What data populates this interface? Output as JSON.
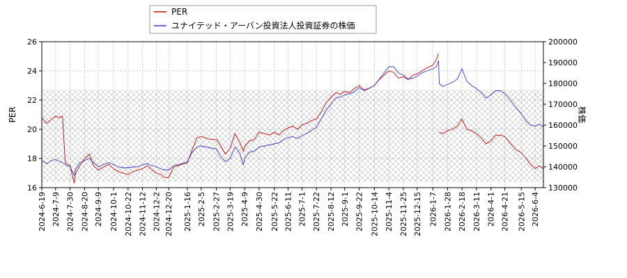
{
  "chart_data": {
    "type": "line",
    "legend": {
      "placement": "top-center",
      "entries": [
        {
          "label": "PER",
          "color": "#cc0000"
        },
        {
          "label": "ユナイテッド・アーバン投資法人投資証券の株価",
          "color": "#3333cc"
        }
      ]
    },
    "ylabel_left": "PER",
    "ylabel_right": "株価",
    "ylim_left": [
      16,
      26
    ],
    "ylim_right": [
      130000,
      200000
    ],
    "yticks_left": [
      "16",
      "18",
      "20",
      "22",
      "24",
      "26"
    ],
    "yticks_right": [
      "130000",
      "140000",
      "150000",
      "160000",
      "170000",
      "180000",
      "190000",
      "200000"
    ],
    "shaded_band_left": [
      16.4,
      22.7
    ],
    "grid": true,
    "x_ticks": [
      "2024-6-19",
      "2024-7-9",
      "2024-7-30",
      "2024-8-20",
      "2024-9-9",
      "2024-10-1",
      "2024-10-22",
      "2024-11-12",
      "2024-12-2",
      "2024-12-20",
      "2025-1-16",
      "2025-2-5",
      "2025-2-27",
      "2025-3-19",
      "2025-4-9",
      "2025-4-30",
      "2025-5-22",
      "2025-6-11",
      "2025-7-1",
      "2025-7-22",
      "2025-8-12",
      "2025-9-1",
      "2025-9-22",
      "2025-10-14",
      "2025-11-4",
      "2025-11-25",
      "2025-12-15",
      "2026-1-7",
      "2026-1-28",
      "2026-2-18",
      "2026-3-11",
      "2026-4-1",
      "2026-4-21",
      "2026-5-15",
      "2026-6-4"
    ],
    "series": [
      {
        "name": "PER",
        "axis": "left",
        "color": "#cc0000",
        "x": [
          "2024-6-19",
          "2024-6-26",
          "2024-7-3",
          "2024-7-9",
          "2024-7-15",
          "2024-7-19",
          "2024-7-23",
          "2024-7-30",
          "2024-8-5",
          "2024-8-7",
          "2024-8-13",
          "2024-8-20",
          "2024-8-27",
          "2024-9-2",
          "2024-9-9",
          "2024-9-16",
          "2024-9-24",
          "2024-10-1",
          "2024-10-8",
          "2024-10-15",
          "2024-10-22",
          "2024-10-29",
          "2024-11-5",
          "2024-11-12",
          "2024-11-19",
          "2024-11-26",
          "2024-12-2",
          "2024-12-9",
          "2024-12-13",
          "2024-12-20",
          "2024-12-27",
          "2025-1-8",
          "2025-1-16",
          "2025-1-23",
          "2025-1-30",
          "2025-2-5",
          "2025-2-12",
          "2025-2-19",
          "2025-2-27",
          "2025-3-5",
          "2025-3-12",
          "2025-3-19",
          "2025-3-26",
          "2025-4-2",
          "2025-4-7",
          "2025-4-9",
          "2025-4-16",
          "2025-4-23",
          "2025-4-30",
          "2025-5-8",
          "2025-5-15",
          "2025-5-22",
          "2025-5-29",
          "2025-6-4",
          "2025-6-11",
          "2025-6-18",
          "2025-6-25",
          "2025-7-1",
          "2025-7-8",
          "2025-7-15",
          "2025-7-22",
          "2025-7-29",
          "2025-8-5",
          "2025-8-12",
          "2025-8-19",
          "2025-8-26",
          "2025-9-1",
          "2025-9-8",
          "2025-9-15",
          "2025-9-22",
          "2025-9-29",
          "2025-10-6",
          "2025-10-14",
          "2025-10-21",
          "2025-10-28",
          "2025-11-4",
          "2025-11-11",
          "2025-11-18",
          "2025-11-25",
          "2025-12-2",
          "2025-12-9",
          "2025-12-15",
          "2025-12-22",
          "2025-12-29",
          "2026-1-7",
          "2026-1-12",
          "2026-1-15",
          "2026-1-16",
          "2026-1-21",
          "2026-1-28",
          "2026-2-4",
          "2026-2-11",
          "2026-2-18",
          "2026-2-25",
          "2026-3-4",
          "2026-3-11",
          "2026-3-18",
          "2026-3-25",
          "2026-4-1",
          "2026-4-8",
          "2026-4-15",
          "2026-4-21",
          "2026-4-28",
          "2026-5-7",
          "2026-5-15",
          "2026-5-22",
          "2026-5-28",
          "2026-6-4",
          "2026-6-10",
          "2026-6-16"
        ],
        "values": [
          20.8,
          20.4,
          20.7,
          20.9,
          20.8,
          20.9,
          17.7,
          17.5,
          16.3,
          17.0,
          17.5,
          18.0,
          18.3,
          17.5,
          17.2,
          17.4,
          17.6,
          17.3,
          17.1,
          17.0,
          16.9,
          17.1,
          17.2,
          17.3,
          17.5,
          17.2,
          17.0,
          16.9,
          16.7,
          16.7,
          17.4,
          17.6,
          17.7,
          18.6,
          19.4,
          19.5,
          19.4,
          19.3,
          19.3,
          18.9,
          18.3,
          18.7,
          19.7,
          19.1,
          18.5,
          18.8,
          19.2,
          19.3,
          19.8,
          19.7,
          19.6,
          19.8,
          19.6,
          19.9,
          20.1,
          20.2,
          20.0,
          20.3,
          20.4,
          20.6,
          20.7,
          21.2,
          21.8,
          22.2,
          22.5,
          22.4,
          22.6,
          22.5,
          22.8,
          23.0,
          22.7,
          22.8,
          23.0,
          23.4,
          23.7,
          24.0,
          23.9,
          23.5,
          23.6,
          23.4,
          23.7,
          23.8,
          24.0,
          24.2,
          24.4,
          24.8,
          25.2,
          19.8,
          19.7,
          19.9,
          20.0,
          20.2,
          20.7,
          20.0,
          19.9,
          19.7,
          19.4,
          19.0,
          19.2,
          19.6,
          19.6,
          19.5,
          19.1,
          18.6,
          18.4,
          18.0,
          17.6,
          17.3,
          17.5,
          17.3
        ]
      },
      {
        "name": "ユナイテッド・アーバン投資法人投資証券の株価",
        "axis": "right",
        "color": "#3333cc",
        "x": [
          "2024-6-19",
          "2024-6-26",
          "2024-7-3",
          "2024-7-9",
          "2024-7-15",
          "2024-7-19",
          "2024-7-23",
          "2024-7-30",
          "2024-8-5",
          "2024-8-7",
          "2024-8-13",
          "2024-8-20",
          "2024-8-27",
          "2024-9-2",
          "2024-9-9",
          "2024-9-16",
          "2024-9-24",
          "2024-10-1",
          "2024-10-8",
          "2024-10-15",
          "2024-10-22",
          "2024-10-29",
          "2024-11-5",
          "2024-11-12",
          "2024-11-19",
          "2024-11-26",
          "2024-12-2",
          "2024-12-9",
          "2024-12-13",
          "2024-12-20",
          "2024-12-27",
          "2025-1-8",
          "2025-1-16",
          "2025-1-23",
          "2025-1-30",
          "2025-2-5",
          "2025-2-12",
          "2025-2-19",
          "2025-2-27",
          "2025-3-5",
          "2025-3-12",
          "2025-3-19",
          "2025-3-26",
          "2025-4-2",
          "2025-4-7",
          "2025-4-9",
          "2025-4-16",
          "2025-4-23",
          "2025-4-30",
          "2025-5-8",
          "2025-5-15",
          "2025-5-22",
          "2025-5-29",
          "2025-6-4",
          "2025-6-11",
          "2025-6-18",
          "2025-6-25",
          "2025-7-1",
          "2025-7-8",
          "2025-7-15",
          "2025-7-22",
          "2025-7-29",
          "2025-8-5",
          "2025-8-12",
          "2025-8-19",
          "2025-8-26",
          "2025-9-1",
          "2025-9-8",
          "2025-9-15",
          "2025-9-22",
          "2025-9-29",
          "2025-10-6",
          "2025-10-14",
          "2025-10-21",
          "2025-10-28",
          "2025-11-4",
          "2025-11-11",
          "2025-11-18",
          "2025-11-25",
          "2025-12-2",
          "2025-12-9",
          "2025-12-15",
          "2025-12-22",
          "2025-12-29",
          "2026-1-7",
          "2026-1-12",
          "2026-1-15",
          "2026-1-16",
          "2026-1-21",
          "2026-1-28",
          "2026-2-4",
          "2026-2-11",
          "2026-2-18",
          "2026-2-25",
          "2026-3-4",
          "2026-3-11",
          "2026-3-18",
          "2026-3-25",
          "2026-4-1",
          "2026-4-8",
          "2026-4-15",
          "2026-4-21",
          "2026-4-28",
          "2026-5-7",
          "2026-5-15",
          "2026-5-22",
          "2026-5-28",
          "2026-6-4",
          "2026-6-10",
          "2026-6-16"
        ],
        "values": [
          143000,
          141500,
          143000,
          143500,
          142500,
          142000,
          141000,
          140000,
          136000,
          139000,
          142000,
          143000,
          144000,
          142000,
          140000,
          141000,
          142000,
          141000,
          140000,
          139500,
          139500,
          140000,
          140000,
          141000,
          141500,
          140500,
          140000,
          139000,
          138500,
          138500,
          140500,
          141500,
          142500,
          147000,
          149500,
          150000,
          149500,
          149000,
          148500,
          145000,
          142500,
          144000,
          149500,
          146500,
          141000,
          144000,
          147000,
          147500,
          149500,
          150000,
          150500,
          151000,
          151500,
          153000,
          154000,
          154500,
          153500,
          155000,
          156000,
          157500,
          159000,
          163000,
          167000,
          170000,
          173000,
          173500,
          174500,
          175000,
          176000,
          178000,
          176500,
          177500,
          179000,
          182000,
          185000,
          188000,
          188000,
          185000,
          184000,
          182000,
          182500,
          183500,
          185000,
          186000,
          187000,
          188000,
          191000,
          180000,
          178500,
          179500,
          180500,
          182000,
          187000,
          181000,
          179000,
          177500,
          175500,
          173000,
          174500,
          176500,
          176500,
          175000,
          172500,
          168500,
          165500,
          162000,
          160000,
          159500,
          160500,
          159000
        ]
      }
    ]
  }
}
